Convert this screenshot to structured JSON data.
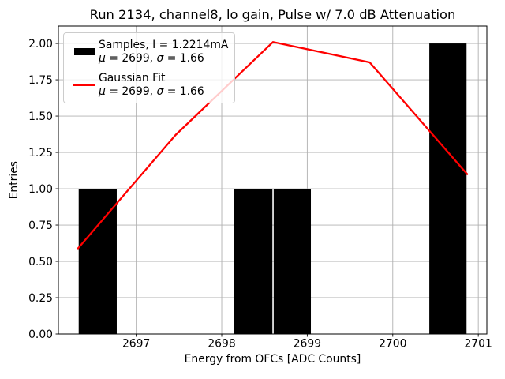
{
  "title": "Run 2134, channel8, lo gain, Pulse w/ 7.0 dB Attenuation",
  "x_axis_label": "Energy from OFCs [ADC Counts]",
  "y_axis_label": "Entries",
  "legend": {
    "entries": [
      {
        "swatch_color": "#000000",
        "label": "Samples, I = 1.2214mA",
        "stats": {
          "mu_symbol": "μ",
          "mu_rest": " = 2699, ",
          "sigma_symbol": "σ",
          "sigma_rest": " = 1.66"
        }
      },
      {
        "swatch_color": "#ff0000",
        "label": "Gaussian Fit",
        "stats": {
          "mu_symbol": "μ",
          "mu_rest": " = 2699, ",
          "sigma_symbol": "σ",
          "sigma_rest": " = 1.66"
        }
      }
    ]
  },
  "colors": {
    "histogram": "#000000",
    "fit_line": "#ff0000",
    "grid": "#b0b0b0",
    "axis": "#000000",
    "legend_border": "#cccccc"
  },
  "chart_data": {
    "type": "histogram+line",
    "title": "Run 2134, channel8, lo gain, Pulse w/ 7.0 dB Attenuation",
    "xlabel": "Energy from OFCs [ADC Counts]",
    "ylabel": "Entries",
    "xlim": [
      2696.09,
      2701.1
    ],
    "ylim": [
      0,
      2.12
    ],
    "xticks": [
      2697,
      2698,
      2699,
      2700,
      2701
    ],
    "yticks": [
      0,
      0.25,
      0.5,
      0.75,
      1.0,
      1.25,
      1.5,
      1.75,
      2.0
    ],
    "grid": true,
    "legend_position": "upper-left",
    "series": [
      {
        "name": "Samples, I = 1.2214mA",
        "type": "histogram",
        "color": "#000000",
        "mu": 2699,
        "sigma": 1.66,
        "bin_edges": [
          2696.32,
          2696.78,
          2697.23,
          2697.69,
          2698.14,
          2698.6,
          2699.05,
          2699.51,
          2699.96,
          2700.42,
          2700.87
        ],
        "counts": [
          1,
          0,
          0,
          0,
          1,
          1,
          0,
          0,
          0,
          2
        ]
      },
      {
        "name": "Gaussian Fit",
        "type": "line",
        "color": "#ff0000",
        "mu": 2699,
        "sigma": 1.66,
        "x": [
          2696.32,
          2697.46,
          2698.6,
          2699.73,
          2700.87
        ],
        "y": [
          0.59,
          1.37,
          2.01,
          1.87,
          1.1
        ]
      }
    ]
  }
}
